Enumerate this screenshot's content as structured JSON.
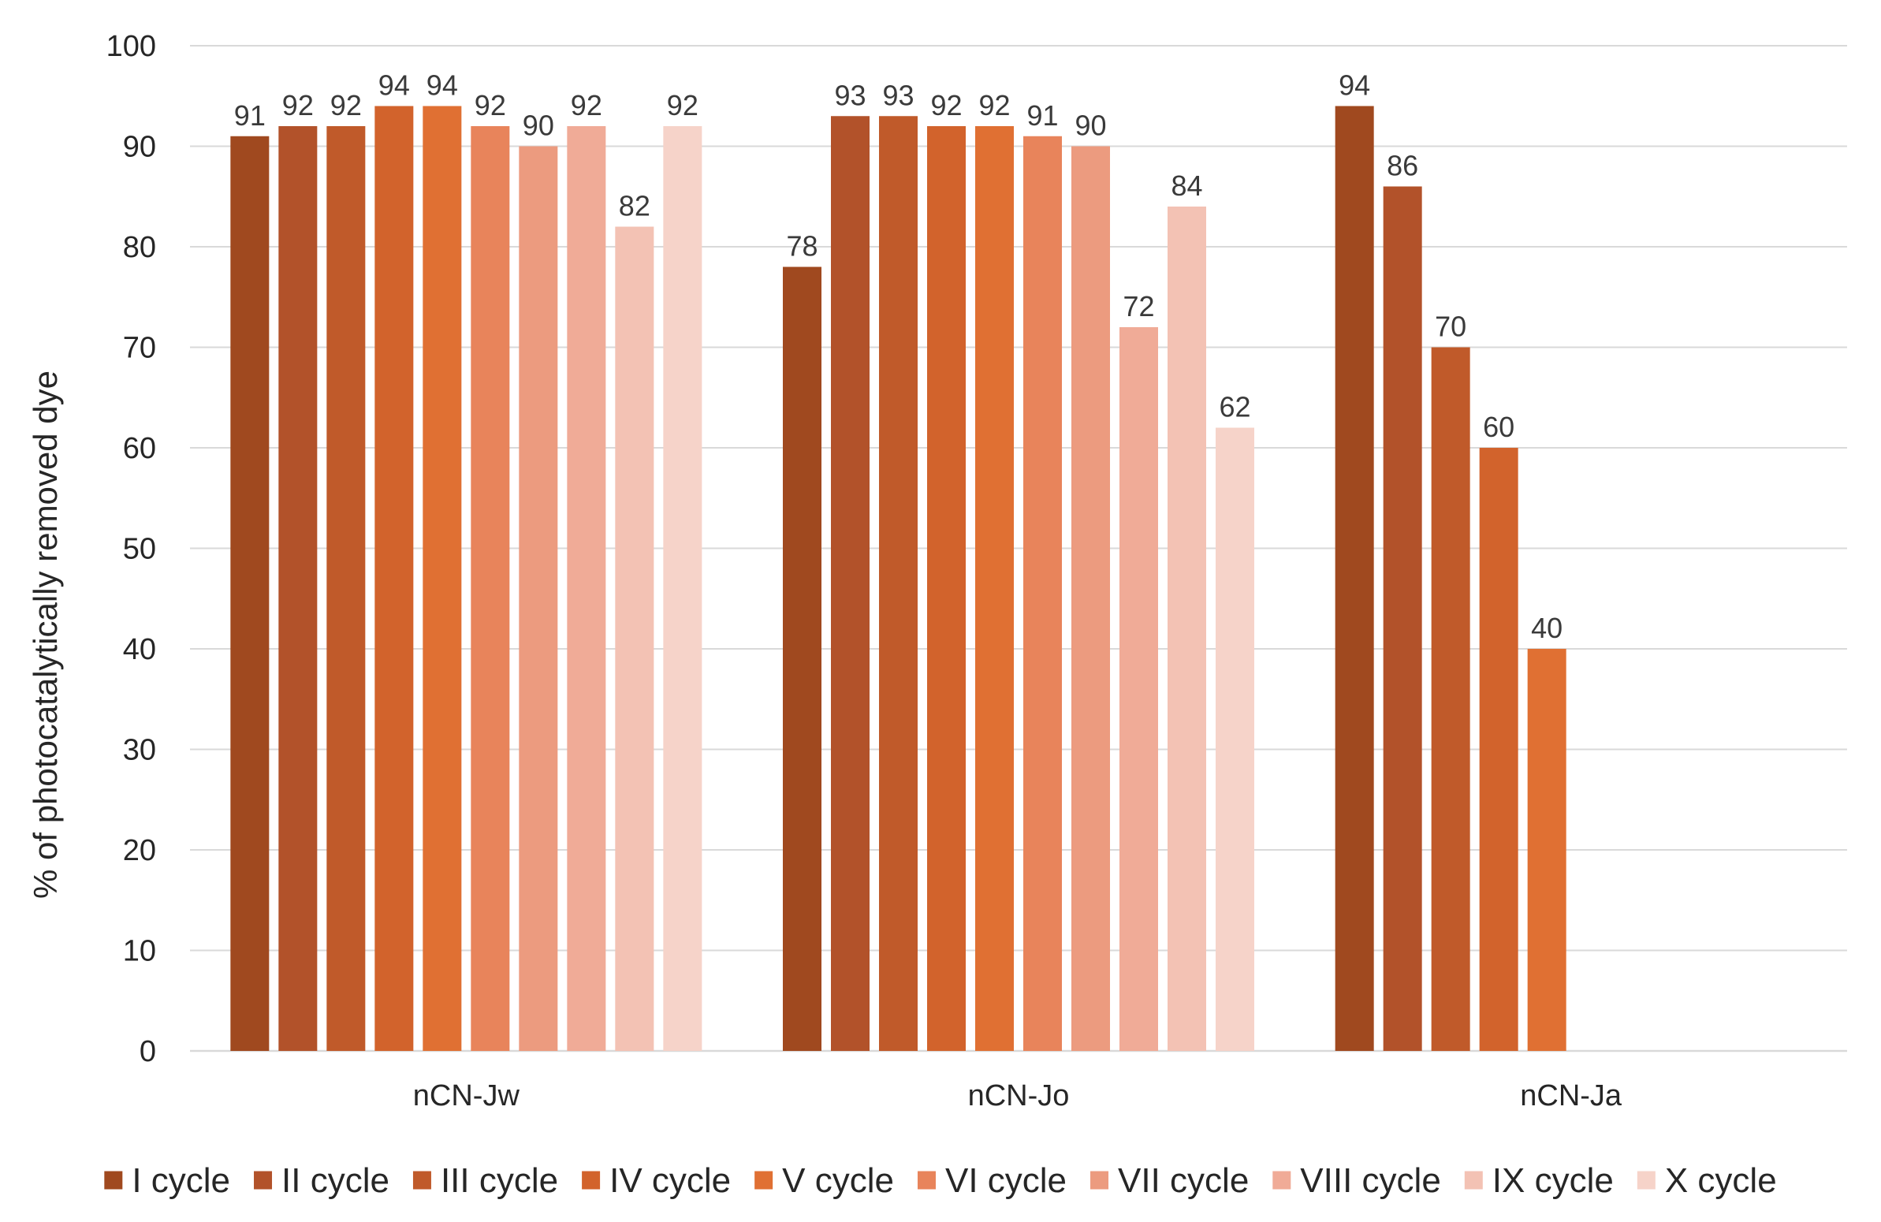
{
  "chart_data": {
    "type": "bar",
    "title": "",
    "xlabel": "",
    "ylabel": "% of photocatalytically removed dye",
    "ylim": [
      0,
      100
    ],
    "yticks": [
      0,
      10,
      20,
      30,
      40,
      50,
      60,
      70,
      80,
      90,
      100
    ],
    "grid": true,
    "legend_position": "bottom",
    "categories": [
      "nCN-Jw",
      "nCN-Jo",
      "nCN-Ja"
    ],
    "series": [
      {
        "name": "I cycle",
        "color": "#a0491f",
        "values": [
          91,
          78,
          94
        ]
      },
      {
        "name": "II cycle",
        "color": "#b2522a",
        "values": [
          92,
          93,
          86
        ]
      },
      {
        "name": "III cycle",
        "color": "#c05a2a",
        "values": [
          92,
          93,
          70
        ]
      },
      {
        "name": "IV cycle",
        "color": "#d2632c",
        "values": [
          94,
          92,
          60
        ]
      },
      {
        "name": "V cycle",
        "color": "#e07033",
        "values": [
          94,
          92,
          40
        ]
      },
      {
        "name": "VI cycle",
        "color": "#e8845b",
        "values": [
          92,
          91,
          null
        ]
      },
      {
        "name": "VII cycle",
        "color": "#ec9b7f",
        "values": [
          90,
          90,
          null
        ]
      },
      {
        "name": "VIII cycle",
        "color": "#f0ab97",
        "values": [
          92,
          72,
          null
        ]
      },
      {
        "name": "IX cycle",
        "color": "#f3c2b4",
        "values": [
          82,
          84,
          null
        ]
      },
      {
        "name": "X cycle",
        "color": "#f6d3c9",
        "values": [
          92,
          62,
          null
        ]
      }
    ]
  }
}
